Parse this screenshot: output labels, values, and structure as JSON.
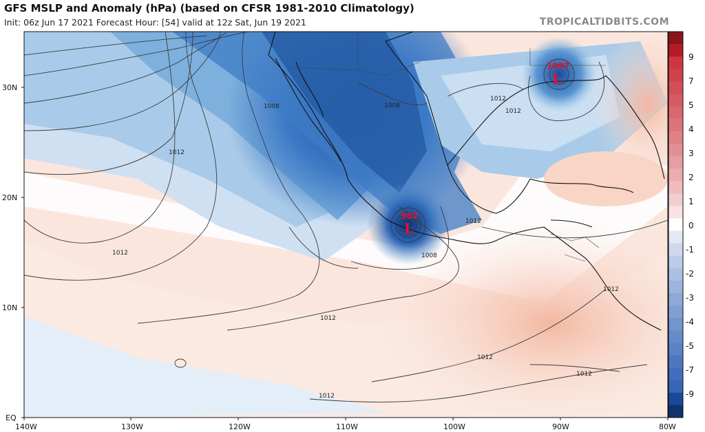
{
  "header": {
    "title": "GFS MSLP and Anomaly (hPa) (based on CFSR 1981-2010 Climatology)",
    "subtitle": "Init: 06z Jun 17 2021   Forecast Hour: [54]   valid at 12z Sat, Jun 19 2021",
    "credit": "TROPICALTIDBITS.COM"
  },
  "axes": {
    "lat_labels": [
      "30N",
      "20N",
      "10N",
      "EQ"
    ],
    "lon_labels": [
      "140W",
      "130W",
      "120W",
      "110W",
      "100W",
      "90W",
      "80W"
    ]
  },
  "isobar_labels": [
    "1008",
    "1008",
    "1012",
    "1012",
    "1012",
    "1012",
    "1008",
    "1012",
    "1012",
    "1012",
    "1012",
    "1012",
    "1012"
  ],
  "lows": [
    {
      "name": "pacific-low",
      "value": "982",
      "symbol": "L"
    },
    {
      "name": "gulf-low",
      "value": "1007",
      "symbol": "L"
    }
  ],
  "colorbar": {
    "labels": [
      "9",
      "7",
      "5",
      "4",
      "3",
      "2",
      "1",
      "0",
      "-1",
      "-2",
      "-3",
      "-4",
      "-5",
      "-7",
      "-9"
    ],
    "negative_color": "#1f55b0",
    "positive_color": "#c8202a"
  }
}
